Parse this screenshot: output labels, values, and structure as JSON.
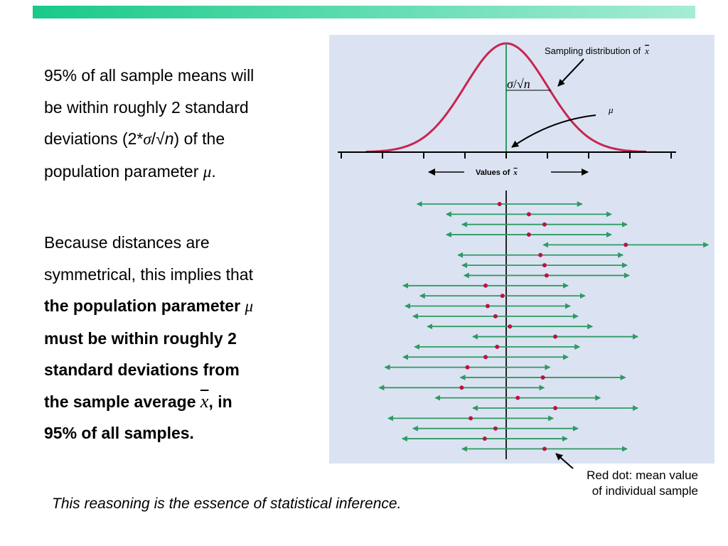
{
  "block1": {
    "line1": "95% of all sample means will",
    "line2": "be within roughly 2 standard",
    "line3_pre": "deviations (2*",
    "sigma": "σ",
    "slash_root": "/√",
    "n": "n",
    "line3_post": ") of the",
    "line4_pre": "population parameter ",
    "mu": "μ",
    "line4_post": "."
  },
  "block2": {
    "line1": "Because distances are",
    "line2": "symmetrical, this implies that",
    "bold1_pre": "the population parameter ",
    "mu": "μ",
    "bold2": "must be within roughly 2",
    "bold3": "standard deviations from",
    "bold4_pre": "the sample average ",
    "xbar": "x",
    "bold4_post": ", in",
    "bold5": "95% of all samples."
  },
  "figure": {
    "curve_label": "Sampling distribution of",
    "curve_label_symbol": "x",
    "sigma_label_sigma": "σ",
    "sigma_label_rest": "/√",
    "sigma_label_n": "n",
    "mu_label": "μ",
    "axis_label": "Values of",
    "axis_label_symbol": "x",
    "colors": {
      "curve": "#c8254f",
      "interval": "#2e9a63",
      "dot": "#c0123f",
      "axis": "#000000",
      "panel": "#dbe3f2"
    },
    "intervals": [
      {
        "center": -0.16,
        "half_width": 2.0
      },
      {
        "center": 0.55,
        "half_width": 2.0
      },
      {
        "center": 0.93,
        "half_width": 2.0
      },
      {
        "center": 0.55,
        "half_width": 2.0
      },
      {
        "center": 2.9,
        "half_width": 2.0
      },
      {
        "center": 0.83,
        "half_width": 2.0
      },
      {
        "center": 0.93,
        "half_width": 2.0
      },
      {
        "center": 0.98,
        "half_width": 2.0
      },
      {
        "center": -0.5,
        "half_width": 2.0
      },
      {
        "center": -0.09,
        "half_width": 2.0
      },
      {
        "center": -0.45,
        "half_width": 2.0
      },
      {
        "center": -0.26,
        "half_width": 2.0
      },
      {
        "center": 0.09,
        "half_width": 2.0
      },
      {
        "center": 1.19,
        "half_width": 2.0
      },
      {
        "center": -0.22,
        "half_width": 2.0
      },
      {
        "center": -0.5,
        "half_width": 2.0
      },
      {
        "center": -0.94,
        "half_width": 2.0
      },
      {
        "center": 0.89,
        "half_width": 2.0
      },
      {
        "center": -1.08,
        "half_width": 2.0
      },
      {
        "center": 0.28,
        "half_width": 2.0
      },
      {
        "center": 1.19,
        "half_width": 2.0
      },
      {
        "center": -0.86,
        "half_width": 2.0
      },
      {
        "center": -0.26,
        "half_width": 2.0
      },
      {
        "center": -0.52,
        "half_width": 2.0
      },
      {
        "center": 0.93,
        "half_width": 2.0
      }
    ]
  },
  "red_dot_note": {
    "line1": "Red dot: mean value",
    "line2": "of individual sample"
  },
  "caption": "This reasoning is the essence of statistical inference."
}
